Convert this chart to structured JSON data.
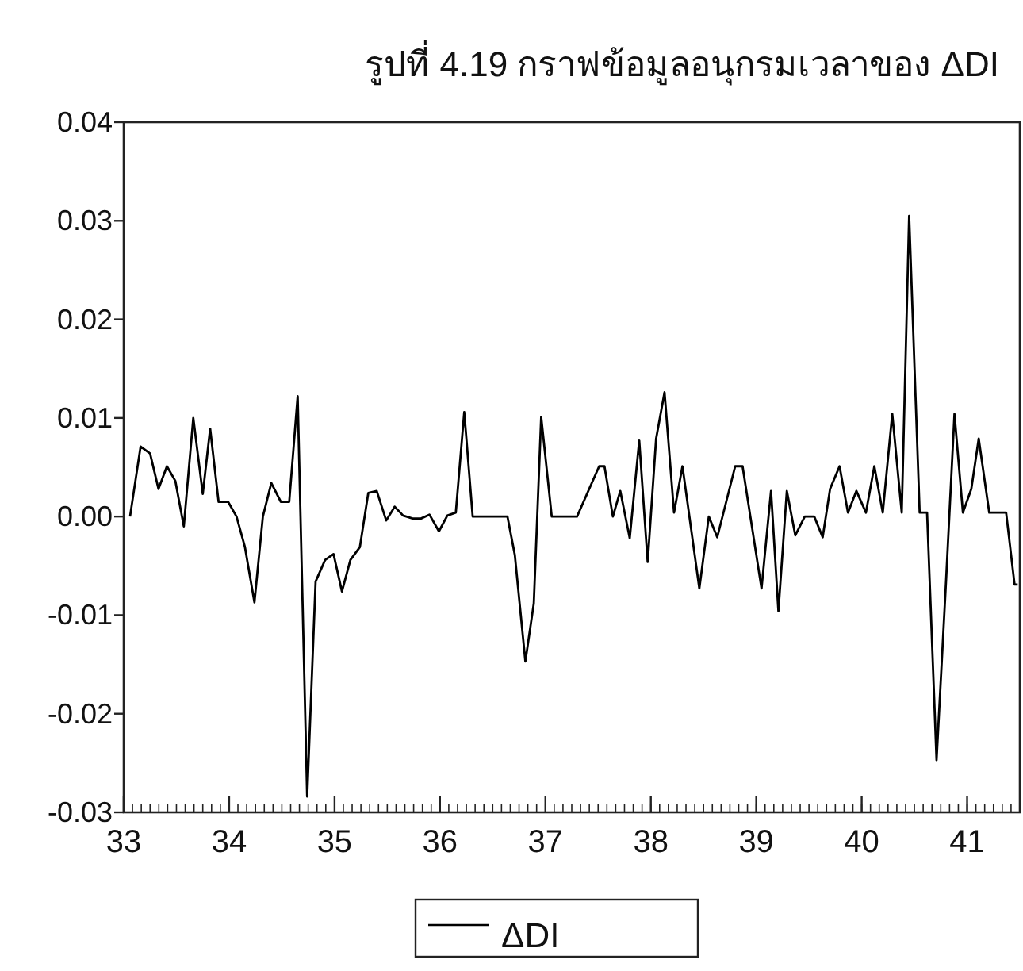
{
  "chart_data": {
    "type": "line",
    "title": "รูปที่ 4.19 กราฟข้อมูลอนุกรมเวลาของ ΔDI",
    "xlim": [
      33,
      41.5
    ],
    "xticks": [
      33,
      34,
      35,
      36,
      37,
      38,
      39,
      40,
      41
    ],
    "ylim": [
      -0.03,
      0.04
    ],
    "yticks": [
      {
        "value": -0.03,
        "label": "-0.03"
      },
      {
        "value": -0.02,
        "label": "-0.02"
      },
      {
        "value": -0.01,
        "label": "-0.01"
      },
      {
        "value": 0,
        "label": "0.00"
      },
      {
        "value": 0.01,
        "label": "0.01"
      },
      {
        "value": 0.02,
        "label": "0.02"
      },
      {
        "value": 0.03,
        "label": "0.03"
      },
      {
        "value": 0.04,
        "label": "0.04"
      }
    ],
    "grid": false,
    "legend": "bottom",
    "marker": "none",
    "line_style": "solid",
    "series": [
      {
        "name": "ΔDI",
        "color": "#000000",
        "x": [
          33.06,
          33.16,
          33.25,
          33.33,
          33.41,
          33.49,
          33.57,
          33.66,
          33.75,
          33.82,
          33.9,
          33.99,
          34.07,
          34.15,
          34.24,
          34.32,
          34.4,
          34.49,
          34.57,
          34.65,
          34.74,
          34.82,
          34.91,
          34.99,
          35.07,
          35.15,
          35.24,
          35.32,
          35.4,
          35.49,
          35.57,
          35.65,
          35.74,
          35.82,
          35.9,
          35.99,
          36.07,
          36.15,
          36.23,
          36.31,
          36.64,
          36.71,
          36.81,
          36.89,
          36.96,
          37.06,
          37.3,
          37.51,
          37.56,
          37.64,
          37.71,
          37.8,
          37.89,
          37.97,
          38.05,
          38.13,
          38.22,
          38.3,
          38.46,
          38.55,
          38.63,
          38.8,
          38.87,
          39.05,
          39.14,
          39.21,
          39.29,
          39.37,
          39.46,
          39.55,
          39.63,
          39.7,
          39.79,
          39.87,
          39.95,
          40.04,
          40.12,
          40.2,
          40.29,
          40.38,
          40.45,
          40.55,
          40.62,
          40.71,
          40.8,
          40.88,
          40.96,
          41.04,
          41.11,
          41.21,
          41.37,
          41.45,
          41.48
        ],
        "values": [
          0.0,
          0.0071,
          0.0064,
          0.0028,
          0.0051,
          0.0036,
          -0.001,
          0.01,
          0.0023,
          0.0089,
          0.0015,
          0.0015,
          0.0,
          -0.0031,
          -0.0087,
          0.0,
          0.0034,
          0.0015,
          0.0015,
          0.0122,
          -0.0284,
          -0.0066,
          -0.0044,
          -0.0038,
          -0.0076,
          -0.0044,
          -0.0031,
          0.0024,
          0.0026,
          -0.0004,
          0.001,
          0.0001,
          -0.0002,
          -0.0002,
          0.0002,
          -0.0015,
          0.0001,
          0.0004,
          0.0106,
          0.0,
          0.0,
          -0.0039,
          -0.0147,
          -0.0088,
          0.0101,
          0.0,
          0.0,
          0.0051,
          0.0051,
          0.0,
          0.0026,
          -0.0022,
          0.0077,
          -0.0046,
          0.0079,
          0.0126,
          0.0004,
          0.0051,
          -0.0073,
          0.0,
          -0.0021,
          0.0051,
          0.0051,
          -0.0073,
          0.0026,
          -0.0096,
          0.0026,
          -0.0019,
          0.0,
          0.0,
          -0.0021,
          0.0028,
          0.0051,
          0.0004,
          0.0026,
          0.0004,
          0.0051,
          0.0004,
          0.0104,
          0.0004,
          0.0305,
          0.0004,
          0.0004,
          -0.0247,
          -0.0066,
          0.0104,
          0.0004,
          0.0028,
          0.0079,
          0.0004,
          0.0004,
          -0.0069,
          -0.0069
        ]
      }
    ]
  }
}
